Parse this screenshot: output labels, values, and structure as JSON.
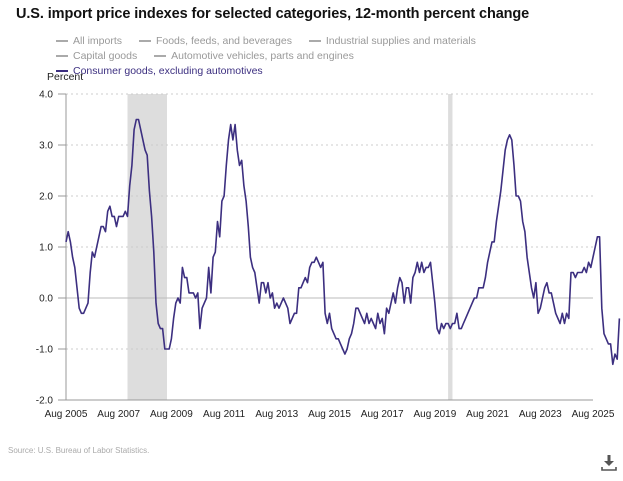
{
  "title": "U.S. import price indexes for selected categories, 12-month percent change",
  "legend": [
    {
      "label": "All imports",
      "active": false
    },
    {
      "label": "Foods, feeds, and beverages",
      "active": false
    },
    {
      "label": "Industrial supplies and materials",
      "active": false
    },
    {
      "label": "Capital goods",
      "active": false
    },
    {
      "label": "Automotive vehicles, parts and engines",
      "active": false
    },
    {
      "label": "Consumer goods, excluding automotives",
      "active": true
    }
  ],
  "source": "Source: U.S. Bureau of Labor Statistics.",
  "download_icon": "download-icon",
  "colors": {
    "series": "#3c2f80",
    "recession": "#dddddd",
    "grid": "#cccccc",
    "zero": "#bbbbbb",
    "legend_inactive": "#999999"
  },
  "chart_data": {
    "type": "line",
    "title": "U.S. import price indexes for selected categories, 12-month percent change",
    "ylabel": "Percent",
    "xlabel": "",
    "ylim": [
      -2.0,
      4.0
    ],
    "yticks": [
      "4.0",
      "3.0",
      "2.0",
      "1.0",
      "0.0",
      "-1.0",
      "-2.0"
    ],
    "ytick_values": [
      4,
      3,
      2,
      1,
      0,
      -1,
      -2
    ],
    "xticks": [
      "Aug 2005",
      "Aug 2007",
      "Aug 2009",
      "Aug 2011",
      "Aug 2013",
      "Aug 2015",
      "Aug 2017",
      "Aug 2019",
      "Aug 2021",
      "Aug 2023",
      "Aug 2025"
    ],
    "x_start": "Aug 2005",
    "x_end": "Aug 2025",
    "grid": true,
    "legend_position": "top",
    "recessions": [
      {
        "start_month_index": 28,
        "end_month_index": 46,
        "label": "Dec 2007 - Jun 2009"
      },
      {
        "start_month_index": 174,
        "end_month_index": 176,
        "label": "Feb 2020 - Apr 2020"
      }
    ],
    "series": [
      {
        "name": "Consumer goods, excluding automotives",
        "start": "Aug 2005",
        "frequency": "monthly",
        "values": [
          1.1,
          1.3,
          1.1,
          0.8,
          0.6,
          0.2,
          -0.2,
          -0.3,
          -0.3,
          -0.2,
          -0.1,
          0.5,
          0.9,
          0.8,
          1.0,
          1.2,
          1.4,
          1.4,
          1.3,
          1.7,
          1.8,
          1.6,
          1.6,
          1.4,
          1.6,
          1.6,
          1.6,
          1.7,
          1.6,
          2.2,
          2.6,
          3.3,
          3.5,
          3.5,
          3.3,
          3.1,
          2.9,
          2.8,
          2.1,
          1.6,
          0.9,
          -0.1,
          -0.5,
          -0.6,
          -0.6,
          -1.0,
          -1.0,
          -1.0,
          -0.8,
          -0.4,
          -0.1,
          0.0,
          -0.1,
          0.6,
          0.4,
          0.4,
          0.1,
          0.1,
          0.1,
          0.0,
          0.1,
          -0.6,
          -0.2,
          -0.1,
          0.0,
          0.6,
          0.1,
          0.8,
          0.9,
          1.5,
          1.2,
          1.9,
          2.0,
          2.6,
          3.1,
          3.4,
          3.1,
          3.4,
          2.9,
          2.6,
          2.7,
          2.2,
          1.9,
          1.4,
          0.8,
          0.6,
          0.5,
          0.2,
          -0.1,
          0.3,
          0.3,
          0.1,
          0.3,
          0.0,
          0.1,
          -0.2,
          -0.1,
          -0.2,
          -0.1,
          0.0,
          -0.1,
          -0.2,
          -0.5,
          -0.4,
          -0.3,
          -0.3,
          0.2,
          0.2,
          0.3,
          0.4,
          0.3,
          0.6,
          0.7,
          0.7,
          0.8,
          0.7,
          0.6,
          0.7,
          -0.3,
          -0.5,
          -0.3,
          -0.6,
          -0.7,
          -0.8,
          -0.8,
          -0.9,
          -1.0,
          -1.1,
          -1.0,
          -0.8,
          -0.7,
          -0.5,
          -0.2,
          -0.2,
          -0.3,
          -0.4,
          -0.5,
          -0.3,
          -0.5,
          -0.4,
          -0.5,
          -0.6,
          -0.3,
          -0.5,
          -0.4,
          -0.7,
          -0.2,
          -0.3,
          -0.1,
          0.1,
          -0.1,
          0.2,
          0.4,
          0.3,
          -0.1,
          0.2,
          0.2,
          -0.1,
          0.4,
          0.5,
          0.7,
          0.5,
          0.7,
          0.5,
          0.6,
          0.6,
          0.7,
          0.3,
          -0.1,
          -0.6,
          -0.7,
          -0.5,
          -0.6,
          -0.5,
          -0.5,
          -0.6,
          -0.5,
          -0.5,
          -0.3,
          -0.6,
          -0.6,
          -0.5,
          -0.4,
          -0.3,
          -0.2,
          -0.1,
          0.0,
          0.0,
          0.2,
          0.2,
          0.2,
          0.4,
          0.7,
          0.9,
          1.1,
          1.1,
          1.5,
          1.8,
          2.1,
          2.5,
          2.9,
          3.1,
          3.2,
          3.1,
          2.6,
          2.0,
          2.0,
          1.9,
          1.5,
          1.3,
          0.8,
          0.5,
          0.2,
          0.0,
          0.3,
          -0.3,
          -0.2,
          0.0,
          0.2,
          0.3,
          0.1,
          0.1,
          -0.1,
          -0.3,
          -0.4,
          -0.5,
          -0.3,
          -0.5,
          -0.3,
          -0.4,
          0.5,
          0.5,
          0.4,
          0.5,
          0.5,
          0.5,
          0.6,
          0.5,
          0.7,
          0.6,
          0.8,
          1.0,
          1.2,
          1.2,
          -0.2,
          -0.7,
          -0.8,
          -0.9,
          -0.9,
          -1.3,
          -1.1,
          -1.2,
          -0.4
        ]
      }
    ]
  }
}
